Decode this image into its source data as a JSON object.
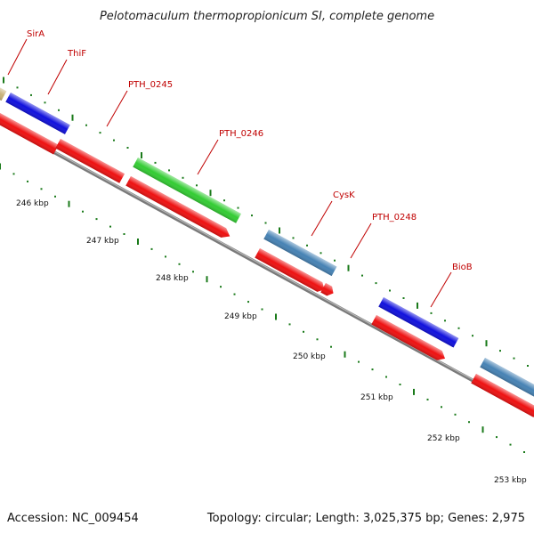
{
  "title": "Pelotomaculum thermopropionicum SI, complete genome",
  "footer": {
    "accession": "Accession: NC_009454",
    "summary": "Topology: circular; Length: 3,025,375 bp; Genes: 2,975"
  },
  "colors": {
    "backbone": "#8c8c8c",
    "cds": "#ee1111",
    "tick": "#1a7a1a",
    "label": "#c00000"
  },
  "genes": [
    {
      "name": "SirA",
      "color": "#c8b27a"
    },
    {
      "name": "ThiF",
      "color": "#1010dd"
    },
    {
      "name": "PTH_0245",
      "color": "#ee1111"
    },
    {
      "name": "PTH_0246",
      "color": "#33cc33"
    },
    {
      "name": "CysK",
      "color": "#4682b4"
    },
    {
      "name": "PTH_0248",
      "color": "#ee1111"
    },
    {
      "name": "BioB",
      "color": "#1010dd"
    },
    {
      "name": "",
      "color": "#4682b4"
    }
  ],
  "kbp_labels": [
    "246 kbp",
    "247 kbp",
    "248 kbp",
    "249 kbp",
    "250 kbp",
    "251 kbp",
    "252 kbp",
    "253 kbp"
  ]
}
